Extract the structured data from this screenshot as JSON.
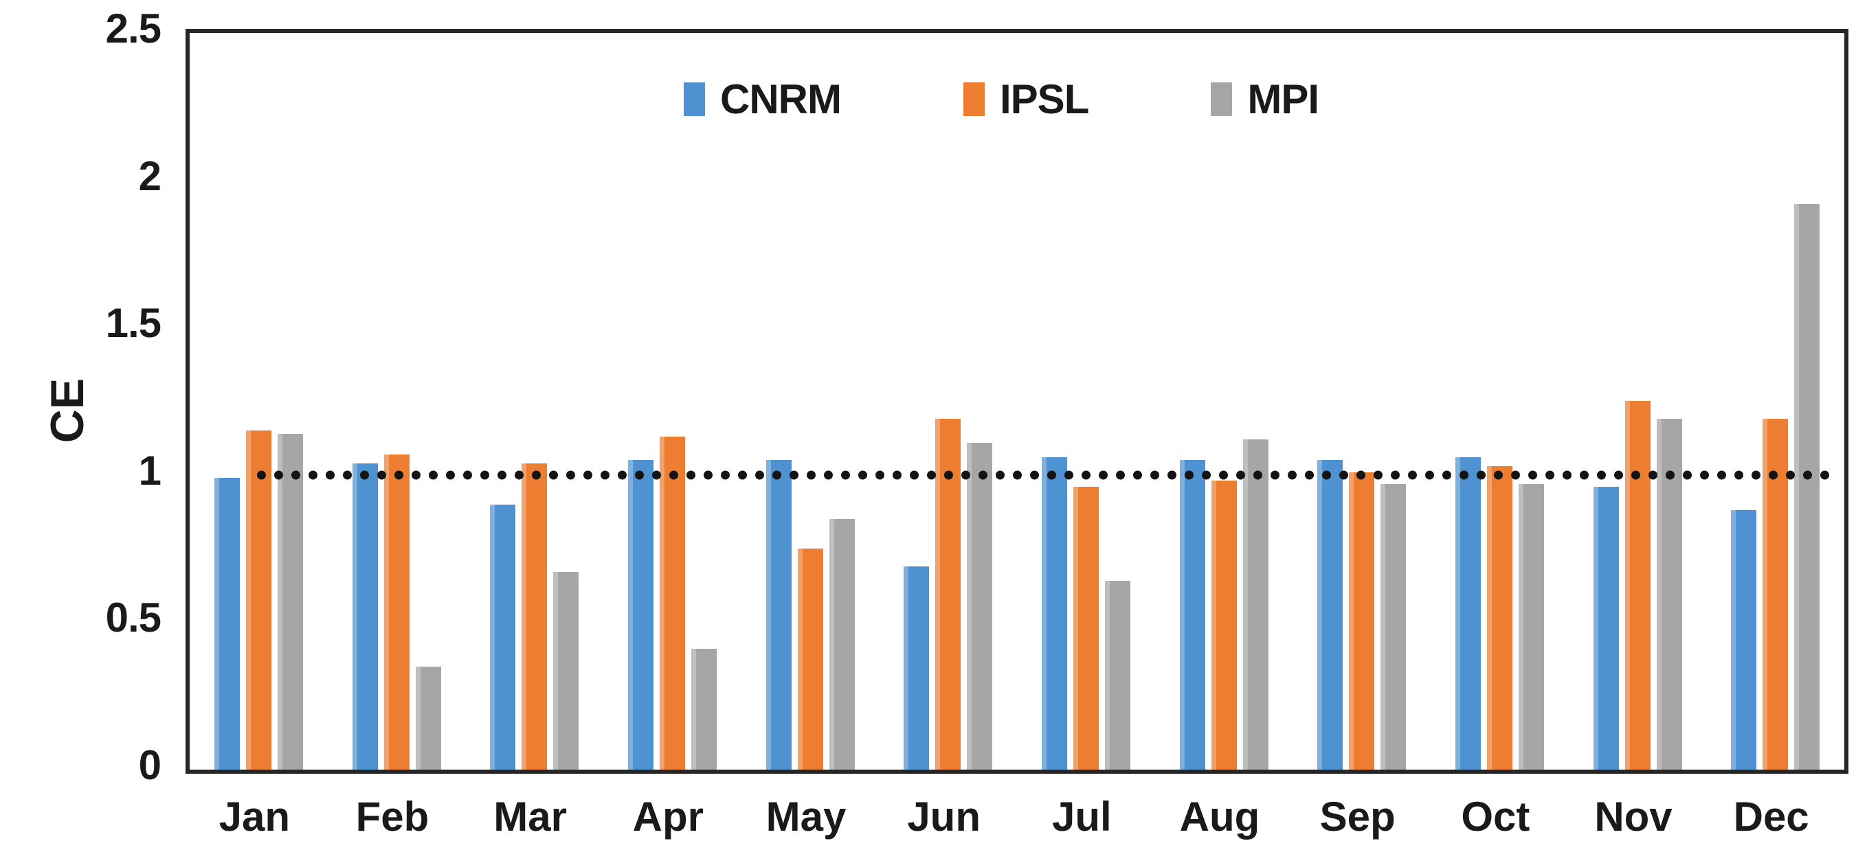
{
  "chart_data": {
    "type": "bar",
    "title": "",
    "xlabel": "",
    "ylabel": "CE",
    "categories": [
      "Jan",
      "Feb",
      "Mar",
      "Apr",
      "May",
      "Jun",
      "Jul",
      "Aug",
      "Sep",
      "Oct",
      "Nov",
      "Dec"
    ],
    "series": [
      {
        "name": "CNRM",
        "color": "#4E92D1",
        "values": [
          0.99,
          1.04,
          0.9,
          1.05,
          1.05,
          0.69,
          1.06,
          1.05,
          1.05,
          1.06,
          0.96,
          0.88
        ]
      },
      {
        "name": "IPSL",
        "color": "#EC7D31",
        "values": [
          1.15,
          1.07,
          1.04,
          1.13,
          0.75,
          1.19,
          0.96,
          0.98,
          1.01,
          1.03,
          1.25,
          1.19
        ]
      },
      {
        "name": "MPI",
        "color": "#A6A6A6",
        "values": [
          1.14,
          0.35,
          0.67,
          0.41,
          0.85,
          1.11,
          0.64,
          1.12,
          0.97,
          0.97,
          1.19,
          1.92
        ]
      }
    ],
    "ylim": [
      0,
      2.5
    ],
    "ytick_labels": [
      "0",
      "0.5",
      "1",
      "1.5",
      "2",
      "2.5"
    ],
    "yticks": [
      0,
      0.5,
      1,
      1.5,
      2,
      2.5
    ],
    "grid": false,
    "legend_position": "top-center",
    "reference_line": {
      "y": 1,
      "style": "dotted",
      "color": "#141414"
    },
    "plot_border_color": "#262626",
    "text_color": "#1a1a1a",
    "background_color": "#ffffff"
  }
}
